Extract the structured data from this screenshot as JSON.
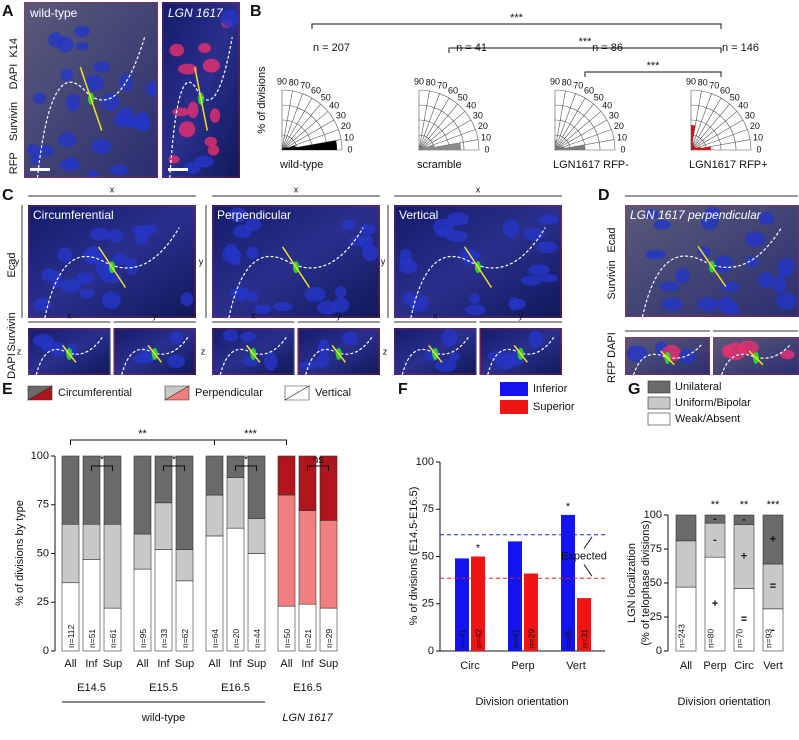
{
  "figure": {
    "A": {
      "label": "A",
      "channels": [
        "RFP",
        "Survivin",
        "DAPI",
        "K14"
      ],
      "channel_colors": [
        "#e0141c",
        "#22c022",
        "#1a2ad0",
        "#999999"
      ],
      "images": [
        "wild-type",
        "LGN 1617"
      ]
    },
    "B": {
      "label": "B"
    },
    "C": {
      "label": "C",
      "channels": [
        "Ecad",
        "Survivin",
        "DAPI"
      ],
      "channel_colors": [
        "#e0141c",
        "#22c022",
        "#1a2ad0"
      ],
      "titles": [
        "Circumferential",
        "Perpendicular",
        "Vertical"
      ],
      "axes": [
        "x",
        "y",
        "z"
      ]
    },
    "D": {
      "label": "D",
      "title": "LGN 1617 perpendicular",
      "channels": [
        "Ecad",
        "Survivin",
        "DAPI",
        "RFP"
      ],
      "channel_colors": [
        "#e0141c",
        "#22c022",
        "#1a2ad0",
        "#999999"
      ]
    },
    "E": {
      "label": "E"
    },
    "F": {
      "label": "F"
    },
    "G": {
      "label": "G"
    }
  },
  "chart_data": [
    {
      "type": "rose",
      "ylabel": "% of divisions",
      "rlim": [
        0,
        60
      ],
      "bins": [
        0,
        10,
        20,
        30,
        40,
        50,
        60,
        70,
        80,
        90
      ],
      "angle_ticks": [
        90,
        80,
        70,
        60,
        50,
        40,
        30,
        20,
        10,
        0
      ],
      "significance": [
        "***",
        "***",
        "***"
      ],
      "plots": [
        {
          "name": "wild-type",
          "n_label": "n = 207",
          "color": "#000000",
          "label_color": "#000000",
          "values": [
            55,
            14,
            6,
            4,
            3,
            2,
            2,
            2,
            2
          ]
        },
        {
          "name": "scramble",
          "n_label": "n = 41",
          "color": "#8a8a8a",
          "label_color": "#8a8a8a",
          "values": [
            42,
            16,
            8,
            5,
            3,
            2,
            2,
            2,
            3
          ]
        },
        {
          "name": "LGN1617 RFP-",
          "n_label": "n = 86",
          "color": "#7a7a7a",
          "label_color": "#555555",
          "values": [
            30,
            10,
            8,
            6,
            4,
            3,
            3,
            4,
            10
          ]
        },
        {
          "name": "LGN1617 RFP+",
          "n_label": "n = 146",
          "color": "#d0141c",
          "label_color": "#d0141c",
          "values": [
            20,
            10,
            5,
            5,
            5,
            5,
            6,
            8,
            25
          ]
        }
      ]
    },
    {
      "type": "stacked_bar",
      "ylabel": "% of divisions by type",
      "categories": [
        "All",
        "Inf",
        "Sup",
        "All",
        "Inf",
        "Sup",
        "All",
        "Inf",
        "Sup",
        "All",
        "Inf",
        "Sup"
      ],
      "groups": [
        "E14.5",
        "E15.5",
        "E16.5",
        "E16.5"
      ],
      "group_notes": [
        "wild-type",
        "LGN 1617"
      ],
      "note_colors": [
        "#000000",
        "#e0141c"
      ],
      "n_labels": [
        "n=112",
        "n=51",
        "n=61",
        "n=95",
        "n=33",
        "n=62",
        "n=64",
        "n=20",
        "n=44",
        "n=50",
        "n=21",
        "n=29"
      ],
      "significance": [
        "*",
        "*",
        "*",
        "ns",
        "**",
        "***"
      ],
      "ylim": [
        0,
        100
      ],
      "yticks": [
        0,
        25,
        50,
        75,
        100
      ],
      "series": [
        {
          "name": "Vertical",
          "colors": [
            "#ffffff",
            "#ffffff",
            "#ffffff",
            "#ffffff",
            "#ffffff",
            "#ffffff",
            "#ffffff",
            "#ffffff",
            "#ffffff",
            "#ffffff",
            "#ffffff",
            "#ffffff"
          ],
          "values": [
            35,
            47,
            22,
            42,
            52,
            36,
            59,
            63,
            50,
            23,
            24,
            22
          ]
        },
        {
          "name": "Perpendicular",
          "colors": [
            "#c8c8c8",
            "#c8c8c8",
            "#c8c8c8",
            "#c8c8c8",
            "#c8c8c8",
            "#c8c8c8",
            "#c8c8c8",
            "#c8c8c8",
            "#c8c8c8",
            "#f08080",
            "#f08080",
            "#f08080"
          ],
          "values": [
            30,
            18,
            43,
            18,
            24,
            16,
            21,
            26,
            18,
            57,
            48,
            45
          ]
        },
        {
          "name": "Circumferential",
          "colors": [
            "#6a6a6a",
            "#6a6a6a",
            "#6a6a6a",
            "#6a6a6a",
            "#6a6a6a",
            "#6a6a6a",
            "#6a6a6a",
            "#6a6a6a",
            "#6a6a6a",
            "#b0141c",
            "#b0141c",
            "#b0141c"
          ],
          "values": [
            35,
            35,
            35,
            40,
            24,
            48,
            20,
            11,
            32,
            20,
            28,
            33
          ]
        }
      ]
    },
    {
      "type": "grouped_bar",
      "ylabel": "% of divisions (E14.5-E16.5)",
      "xlabel": "Division orientation",
      "categories": [
        "Circ",
        "Perp",
        "Vert"
      ],
      "ylim": [
        0,
        100
      ],
      "yticks": [
        0,
        25,
        50,
        75,
        100
      ],
      "reference_label": "Expected",
      "reference_lines": [
        {
          "value": 61.5,
          "color": "#2020e0"
        },
        {
          "value": 38.5,
          "color": "#e02020"
        }
      ],
      "series": [
        {
          "name": "Inferior",
          "color": "#1414f0",
          "values": [
            49,
            58,
            72
          ],
          "n_labels": [
            "n=41",
            "n=41",
            "n=85"
          ],
          "markers": [
            null,
            null,
            "*"
          ]
        },
        {
          "name": "Superior",
          "color": "#f01414",
          "values": [
            50,
            41,
            28
          ],
          "n_labels": [
            "n=42",
            "n=29",
            "n=31"
          ],
          "markers": [
            "*",
            null,
            null
          ]
        }
      ]
    },
    {
      "type": "stacked_bar_simple",
      "ylabel": [
        "LGN localization",
        "(% of telophase divisions)"
      ],
      "xlabel": "Division orientation",
      "categories": [
        "All",
        "Perp",
        "Circ",
        "Vert"
      ],
      "n_labels": [
        "n=243",
        "n=80",
        "n=70",
        "n=93"
      ],
      "significance": [
        null,
        "**",
        "**",
        "***"
      ],
      "ylim": [
        0,
        100
      ],
      "yticks": [
        0,
        25,
        50,
        75,
        100
      ],
      "series": [
        {
          "name": "Weak/Absent",
          "color": "#ffffff",
          "values": [
            47,
            69,
            46,
            31
          ],
          "symbols": [
            null,
            "+",
            "=",
            "-"
          ]
        },
        {
          "name": "Uniform/Bipolar",
          "color": "#c8c8c8",
          "values": [
            34,
            25,
            47,
            33
          ],
          "symbols": [
            null,
            "-",
            "+",
            "="
          ]
        },
        {
          "name": "Unilateral",
          "color": "#6a6a6a",
          "values": [
            19,
            6,
            7,
            36
          ],
          "symbols": [
            null,
            "-",
            "-",
            "+"
          ]
        }
      ]
    }
  ]
}
